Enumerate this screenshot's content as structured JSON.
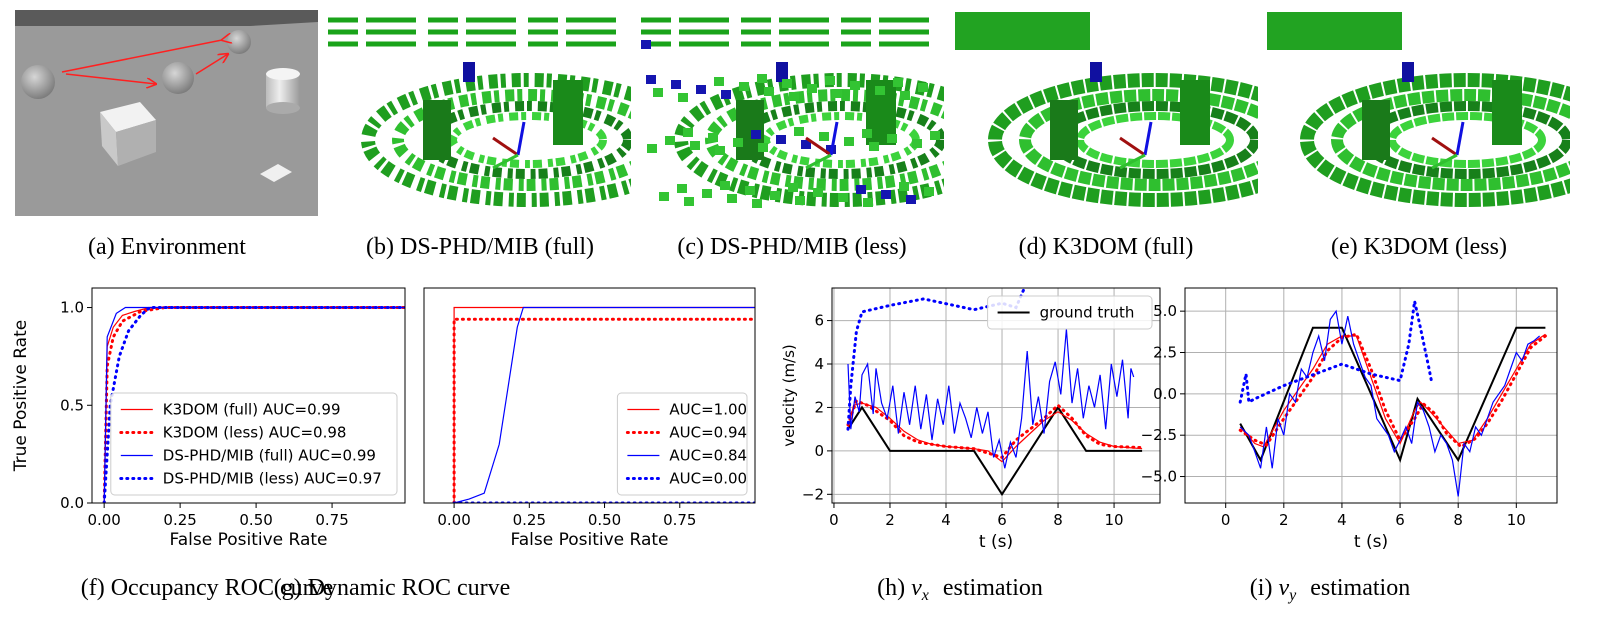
{
  "panels": [
    {
      "tag": "(a)",
      "text": "Environment"
    },
    {
      "tag": "(b)",
      "text": "DS-PHD/MIB (full)"
    },
    {
      "tag": "(c)",
      "text": "DS-PHD/MIB (less)"
    },
    {
      "tag": "(d)",
      "text": "K3DOM (full)"
    },
    {
      "tag": "(e)",
      "text": "K3DOM (less)"
    }
  ],
  "chart_data": [
    {
      "type": "line",
      "caption": {
        "tag": "(f)",
        "text": "Occupancy ROC curve"
      },
      "xlabel": "False Positive Rate",
      "ylabel": "True Positive Rate",
      "xlim": [
        -0.04,
        0.99
      ],
      "ylim": [
        0,
        1.1
      ],
      "xticks": [
        {
          "value": 0,
          "label": "0.00"
        },
        {
          "value": 0.25,
          "label": "0.25"
        },
        {
          "value": 0.5,
          "label": "0.50"
        },
        {
          "value": 0.75,
          "label": "0.75"
        }
      ],
      "yticks": [
        {
          "value": 0,
          "label": "0.0"
        },
        {
          "value": 0.5,
          "label": "0.5"
        },
        {
          "value": 1,
          "label": "1.0"
        }
      ],
      "grid": false,
      "legend": "lower right",
      "series": [
        {
          "name": "K3DOM (full) AUC=0.99",
          "color": "#ff0000",
          "style": "solid",
          "x": [
            0,
            0.01,
            0.03,
            0.06,
            0.1,
            0.15,
            1
          ],
          "values": [
            0,
            0.8,
            0.9,
            0.96,
            0.98,
            1,
            1
          ]
        },
        {
          "name": "K3DOM (less) AUC=0.98",
          "color": "#ff0000",
          "style": "dotted",
          "x": [
            0,
            0.01,
            0.03,
            0.06,
            0.12,
            0.2,
            1
          ],
          "values": [
            0,
            0.7,
            0.85,
            0.93,
            0.98,
            1,
            1
          ]
        },
        {
          "name": "DS-PHD/MIB (full) AUC=0.99",
          "color": "#0000ff",
          "style": "solid",
          "x": [
            0,
            0.01,
            0.04,
            0.07,
            1
          ],
          "values": [
            0,
            0.85,
            0.97,
            1,
            1
          ]
        },
        {
          "name": "DS-PHD/MIB (less) AUC=0.97",
          "color": "#0000ff",
          "style": "dotted",
          "x": [
            0,
            0.02,
            0.05,
            0.08,
            0.12,
            0.15,
            1
          ],
          "values": [
            0,
            0.5,
            0.75,
            0.88,
            0.96,
            1,
            1
          ]
        }
      ]
    },
    {
      "type": "line",
      "caption": {
        "tag": "(g)",
        "text": "Dynamic ROC curve"
      },
      "xlabel": "False Positive Rate",
      "xlim": [
        -0.1,
        1.0
      ],
      "ylim": [
        0,
        1.1
      ],
      "xticks": [
        {
          "value": 0,
          "label": "0.00"
        },
        {
          "value": 0.25,
          "label": "0.25"
        },
        {
          "value": 0.5,
          "label": "0.50"
        },
        {
          "value": 0.75,
          "label": "0.75"
        }
      ],
      "grid": false,
      "legend": "lower right",
      "series": [
        {
          "name": "AUC=1.00",
          "color": "#ff0000",
          "style": "solid",
          "x": [
            0,
            0,
            1
          ],
          "values": [
            0,
            1,
            1
          ]
        },
        {
          "name": "AUC=0.94",
          "color": "#ff0000",
          "style": "dotted",
          "x": [
            0,
            0,
            1
          ],
          "values": [
            0,
            0.94,
            0.94
          ]
        },
        {
          "name": "AUC=0.84",
          "color": "#0000ff",
          "style": "solid",
          "x": [
            0,
            0.05,
            0.1,
            0.15,
            0.18,
            0.21,
            0.23,
            1
          ],
          "values": [
            0,
            0.02,
            0.05,
            0.3,
            0.6,
            0.9,
            1,
            1
          ]
        },
        {
          "name": "AUC=0.00",
          "color": "#0000ff",
          "style": "dotted",
          "x": [
            0,
            1
          ],
          "values": [
            0,
            0
          ]
        }
      ]
    },
    {
      "type": "line",
      "caption": {
        "tag": "(h)",
        "var": "v",
        "sub": "x",
        "text": "estimation"
      },
      "xlabel": "t (s)",
      "ylabel": "velocity (m/s)",
      "xlim": [
        -0.07,
        11.64
      ],
      "ylim": [
        -2.4,
        7.5
      ],
      "xticks": [
        0,
        2,
        4,
        6,
        8,
        10
      ],
      "yticks": [
        {
          "value": -2,
          "label": "−2"
        },
        0,
        2,
        4,
        6
      ],
      "grid": true,
      "legend": "upper right",
      "series": [
        {
          "name": "ground truth",
          "color": "#000000",
          "style": "solid",
          "width": 2,
          "x": [
            0.5,
            1,
            2,
            5,
            6,
            8,
            9,
            11
          ],
          "values": [
            1,
            2,
            0,
            0,
            -2,
            2,
            0,
            0
          ]
        },
        {
          "color": "#ff0000",
          "style": "solid",
          "x": [
            0.5,
            0.7,
            1,
            1.5,
            2,
            2.5,
            3,
            3.5,
            4,
            5,
            5.5,
            6,
            6.5,
            7,
            7.5,
            8,
            8.5,
            9,
            9.5,
            10,
            11
          ],
          "values": [
            1,
            2.1,
            2.2,
            2,
            1.5,
            0.9,
            0.5,
            0.3,
            0.2,
            0.1,
            0,
            -0.5,
            0.2,
            0.8,
            1.4,
            1.8,
            1.4,
            0.8,
            0.4,
            0.2,
            0.1
          ]
        },
        {
          "color": "#ff0000",
          "style": "dotted",
          "x": [
            0.5,
            0.8,
            1.2,
            2,
            2.5,
            3,
            4,
            5,
            5.5,
            6,
            6.5,
            7,
            7.5,
            8,
            8.5,
            9,
            9.5,
            10,
            11
          ],
          "values": [
            1.2,
            2.3,
            2.1,
            1.4,
            0.7,
            0.4,
            0.2,
            0.1,
            -0.1,
            -0.3,
            0.5,
            1,
            1.5,
            2.1,
            1.5,
            0.7,
            0.3,
            0.2,
            0.15
          ]
        },
        {
          "color": "#0000ff",
          "style": "solid",
          "x": [
            0.5,
            0.6,
            0.75,
            0.9,
            1,
            1.2,
            1.4,
            1.5,
            1.7,
            1.9,
            2.1,
            2.3,
            2.5,
            2.7,
            2.9,
            3.1,
            3.3,
            3.5,
            3.7,
            3.9,
            4.1,
            4.3,
            4.5,
            4.7,
            4.9,
            5.1,
            5.3,
            5.5,
            5.7,
            5.9,
            6.1,
            6.3,
            6.5,
            6.7,
            6.9,
            7.1,
            7.3,
            7.5,
            7.7,
            7.9,
            8.1,
            8.3,
            8.5,
            8.7,
            8.9,
            9.1,
            9.3,
            9.5,
            9.7,
            9.9,
            10.1,
            10.3,
            10.5,
            10.6,
            10.7
          ],
          "values": [
            4,
            1,
            2.5,
            1.8,
            3.5,
            4,
            1.7,
            3.8,
            2.2,
            1.5,
            3,
            0.8,
            2.7,
            1.2,
            3,
            1,
            2.6,
            0.5,
            2.4,
            1.2,
            3,
            0.8,
            2.2,
            1.5,
            0.6,
            2,
            0.8,
            1.8,
            -0.3,
            0.5,
            -0.8,
            0.4,
            -0.3,
            1.5,
            4.6,
            1.2,
            2.5,
            0.8,
            3.2,
            4.1,
            2.6,
            5.6,
            2.2,
            3.8,
            1.5,
            3,
            2,
            3.5,
            1,
            4,
            2.5,
            4.2,
            1.5,
            3.8,
            3.4
          ]
        },
        {
          "color": "#0000ff",
          "style": "dotted",
          "x": [
            0.5,
            0.6,
            0.8,
            1,
            2,
            3.2,
            5,
            6,
            6.5,
            6.8
          ],
          "values": [
            1,
            3,
            5.5,
            6.4,
            6.7,
            7,
            6.5,
            6.8,
            6.6,
            7.5
          ]
        }
      ]
    },
    {
      "type": "line",
      "caption": {
        "tag": "(i)",
        "var": "v",
        "sub": "y",
        "text": "estimation"
      },
      "xlabel": "t (s)",
      "xlim": [
        -1.4,
        11.4
      ],
      "ylim": [
        -6.6,
        6.4
      ],
      "xticks": [
        0,
        2,
        4,
        6,
        8,
        10
      ],
      "yticks": [
        {
          "value": -5,
          "label": "−5.0"
        },
        {
          "value": -2.5,
          "label": "−2.5"
        },
        {
          "value": 0,
          "label": "0.0"
        },
        {
          "value": 2.5,
          "label": "2.5"
        },
        {
          "value": 5,
          "label": "5.0"
        }
      ],
      "grid": true,
      "series": [
        {
          "color": "#000000",
          "style": "solid",
          "width": 2,
          "x": [
            0.5,
            1.2,
            3,
            4,
            6,
            6.6,
            8,
            10,
            11
          ],
          "values": [
            -1.8,
            -4,
            4,
            4,
            -4,
            -0.3,
            -4,
            4,
            4
          ]
        },
        {
          "color": "#ff0000",
          "style": "solid",
          "x": [
            0.5,
            1,
            1.3,
            2,
            3,
            3.5,
            4,
            4.5,
            5,
            5.5,
            6,
            6.5,
            6.7,
            7,
            7.5,
            8,
            8.5,
            9,
            9.5,
            10,
            10.5,
            11
          ],
          "values": [
            -2,
            -3,
            -3.2,
            -1,
            1.5,
            3,
            3.5,
            3.5,
            1,
            -1.5,
            -3,
            -1,
            -0.5,
            -1,
            -2,
            -3,
            -2.8,
            -1.5,
            0,
            1.5,
            3,
            3.6
          ]
        },
        {
          "color": "#ff0000",
          "style": "dotted",
          "x": [
            0.5,
            1,
            1.4,
            2,
            3,
            3.5,
            4,
            4.5,
            5,
            5.5,
            6,
            6.5,
            6.8,
            7.2,
            7.6,
            8.1,
            8.6,
            9,
            9.5,
            10,
            10.5,
            11
          ],
          "values": [
            -2.2,
            -2.8,
            -3.1,
            -1.5,
            1,
            2.6,
            3.4,
            3.6,
            1.5,
            -1,
            -2.8,
            -1.5,
            -0.6,
            -1.2,
            -2.4,
            -3.2,
            -2.7,
            -1.8,
            -0.4,
            1.2,
            2.8,
            3.5
          ]
        },
        {
          "color": "#0000ff",
          "style": "solid",
          "x": [
            0.5,
            0.8,
            1,
            1.2,
            1.4,
            1.6,
            1.8,
            2,
            2.2,
            2.4,
            2.6,
            2.8,
            3,
            3.2,
            3.4,
            3.6,
            3.8,
            4,
            4.2,
            4.4,
            4.6,
            4.8,
            5,
            5.2,
            5.4,
            5.6,
            5.8,
            6,
            6.2,
            6.4,
            6.6,
            6.8,
            7,
            7.2,
            7.4,
            7.6,
            7.8,
            8,
            8.2,
            8.4,
            8.6,
            8.8,
            9,
            9.2,
            9.4,
            9.6,
            9.8,
            10,
            10.2,
            10.4,
            10.6,
            10.8
          ],
          "values": [
            -2,
            -2.5,
            -3.5,
            -4.5,
            -2,
            -4.5,
            -1.5,
            -2.5,
            0,
            -0.5,
            1.5,
            1,
            2.5,
            3.5,
            2,
            4.5,
            5,
            3,
            4.7,
            3,
            2,
            1,
            0.5,
            -1.5,
            -2,
            -2.5,
            -3.5,
            -2.8,
            -2,
            -3,
            -0.5,
            -1,
            -2,
            -3.5,
            -2.5,
            -3,
            -4,
            -6.2,
            -3,
            -3.5,
            -2,
            -2.5,
            -1.5,
            -0.5,
            0,
            0.5,
            1.5,
            2.5,
            2,
            3,
            3.2,
            3.5
          ]
        },
        {
          "color": "#0000ff",
          "style": "dotted",
          "x": [
            0.5,
            0.7,
            0.8,
            1,
            2,
            4,
            5,
            6,
            6.3,
            6.5,
            6.7,
            7,
            7.1
          ],
          "values": [
            -0.5,
            1.2,
            -0.5,
            -0.3,
            0.5,
            1.8,
            1.2,
            0.8,
            3,
            5.6,
            4,
            1.5,
            0.6
          ]
        }
      ]
    }
  ]
}
